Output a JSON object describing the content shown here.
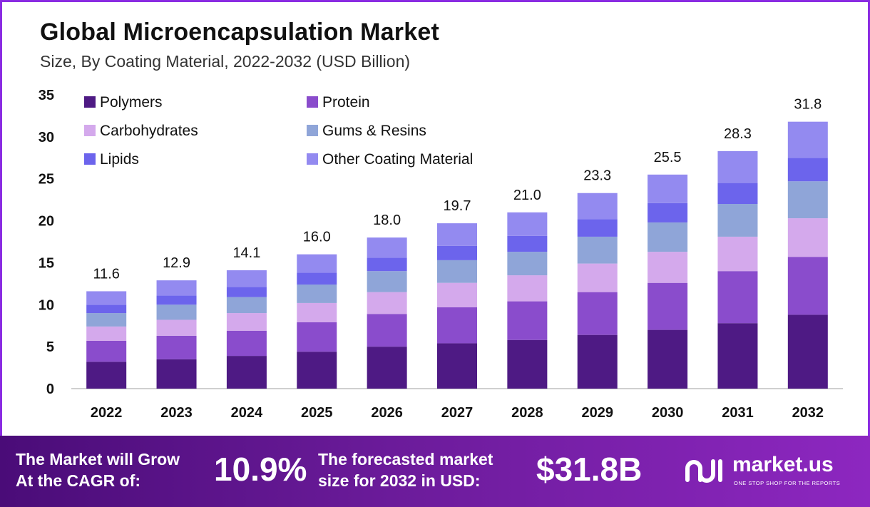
{
  "chart_data": {
    "type": "bar",
    "stacked": true,
    "title": "Global Microencapsulation Market",
    "subtitle": "Size, By Coating Material, 2022-2032 (USD Billion)",
    "categories": [
      "2022",
      "2023",
      "2024",
      "2025",
      "2026",
      "2027",
      "2028",
      "2029",
      "2030",
      "2031",
      "2032"
    ],
    "totals": [
      11.6,
      12.9,
      14.1,
      16.0,
      18.0,
      19.7,
      21.0,
      23.3,
      25.5,
      28.3,
      31.8
    ],
    "totals_labels": [
      "11.6",
      "12.9",
      "14.1",
      "16.0",
      "18.0",
      "19.7",
      "21.0",
      "23.3",
      "25.5",
      "28.3",
      "31.8"
    ],
    "series": [
      {
        "name": "Polymers",
        "color": "#4e1a84",
        "values": [
          3.2,
          3.5,
          3.9,
          4.4,
          5.0,
          5.4,
          5.8,
          6.4,
          7.0,
          7.8,
          8.8
        ]
      },
      {
        "name": "Protein",
        "color": "#8a4ccc",
        "values": [
          2.5,
          2.8,
          3.0,
          3.5,
          3.9,
          4.3,
          4.6,
          5.1,
          5.6,
          6.2,
          6.9
        ]
      },
      {
        "name": "Carbohydrates",
        "color": "#d4a9ec",
        "values": [
          1.7,
          1.9,
          2.1,
          2.3,
          2.6,
          2.9,
          3.1,
          3.4,
          3.7,
          4.1,
          4.6
        ]
      },
      {
        "name": "Gums & Resins",
        "color": "#8fa5d8",
        "values": [
          1.6,
          1.8,
          1.9,
          2.2,
          2.5,
          2.7,
          2.8,
          3.2,
          3.5,
          3.9,
          4.4
        ]
      },
      {
        "name": "Lipids",
        "color": "#6c64ec",
        "values": [
          1.0,
          1.1,
          1.2,
          1.4,
          1.6,
          1.7,
          1.9,
          2.1,
          2.3,
          2.5,
          2.8
        ]
      },
      {
        "name": "Other Coating Material",
        "color": "#938af0",
        "values": [
          1.6,
          1.8,
          2.0,
          2.2,
          2.4,
          2.7,
          2.8,
          3.1,
          3.4,
          3.8,
          4.3
        ]
      }
    ],
    "ylim": [
      0,
      35
    ],
    "yticks": [
      0,
      5,
      10,
      15,
      20,
      25,
      30,
      35
    ],
    "grid": false,
    "legend_position": "top-left"
  },
  "banner": {
    "cagr_line1": "The Market will Grow",
    "cagr_line2": "At the CAGR of:",
    "cagr_value": "10.9%",
    "forecast_line1": "The forecasted market",
    "forecast_line2": "size for 2032 in USD:",
    "forecast_value": "$31.8B",
    "logo_name": "market.us",
    "logo_tagline": "ONE STOP SHOP FOR THE REPORTS"
  },
  "colors": {
    "banner_start": "#4a0c78",
    "banner_end": "#8d27c0",
    "frame": "#8a2be2"
  }
}
